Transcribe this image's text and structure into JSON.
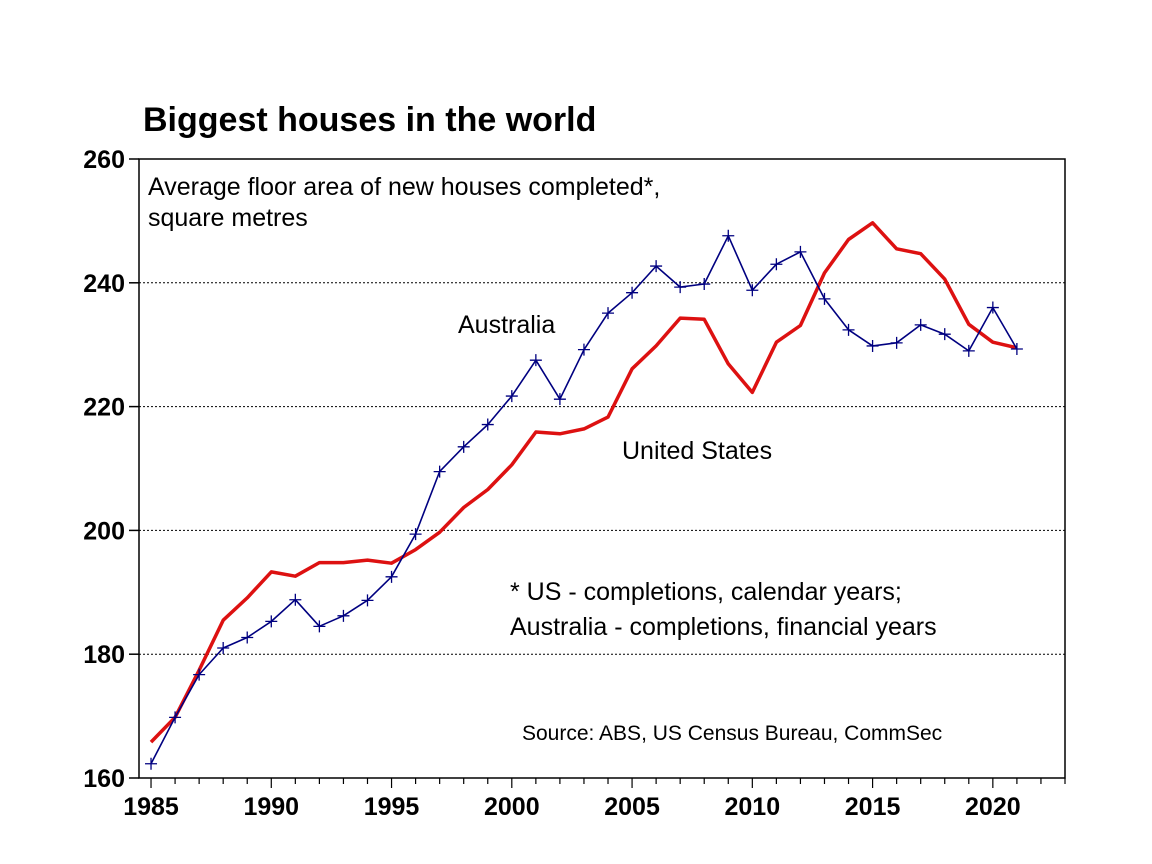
{
  "chart_data": {
    "type": "line",
    "title": "Biggest houses in the world",
    "subtitle_lines": [
      "Average floor area of new houses completed*,",
      "square metres"
    ],
    "footnote_lines": [
      "* US - completions, calendar years;",
      "Australia - completions, financial years"
    ],
    "source": "Source: ABS, US Census Bureau, CommSec",
    "xlim": [
      1984.5,
      2023
    ],
    "ylim": [
      160,
      260
    ],
    "x_ticks": [
      1985,
      1990,
      1995,
      2000,
      2005,
      2010,
      2015,
      2020
    ],
    "y_ticks": [
      160,
      180,
      200,
      220,
      240,
      260
    ],
    "grid_y": true,
    "series": [
      {
        "name": "Australia",
        "color": "#000080",
        "marker": "plus",
        "x": [
          1985,
          1986,
          1987,
          1988,
          1989,
          1990,
          1991,
          1992,
          1993,
          1994,
          1995,
          1996,
          1997,
          1998,
          1999,
          2000,
          2001,
          2002,
          2003,
          2004,
          2005,
          2006,
          2007,
          2008,
          2009,
          2010,
          2011,
          2012,
          2013,
          2014,
          2015,
          2016,
          2017,
          2018,
          2019,
          2020,
          2021
        ],
        "values": [
          162.3,
          169.8,
          176.7,
          181.0,
          182.7,
          185.3,
          188.8,
          184.5,
          186.2,
          188.7,
          192.5,
          199.4,
          209.5,
          213.5,
          217.1,
          221.7,
          227.5,
          221.2,
          229.2,
          235.1,
          238.4,
          242.7,
          239.3,
          239.8,
          247.6,
          238.8,
          243.0,
          245.0,
          237.4,
          232.4,
          229.8,
          230.3,
          233.2,
          231.7,
          229.0,
          236.0,
          229.3
        ]
      },
      {
        "name": "United States",
        "color": "#dd1111",
        "marker": "none",
        "x": [
          1985,
          1986,
          1987,
          1988,
          1989,
          1990,
          1991,
          1992,
          1993,
          1994,
          1995,
          1996,
          1997,
          1998,
          1999,
          2000,
          2001,
          2002,
          2003,
          2004,
          2005,
          2006,
          2007,
          2008,
          2009,
          2010,
          2011,
          2012,
          2013,
          2014,
          2015,
          2016,
          2017,
          2018,
          2019,
          2020,
          2021
        ],
        "values": [
          165.8,
          169.8,
          177.4,
          185.5,
          189.1,
          193.3,
          192.6,
          194.8,
          194.8,
          195.2,
          194.7,
          196.9,
          199.7,
          203.7,
          206.6,
          210.6,
          215.9,
          215.6,
          216.4,
          218.3,
          226.1,
          229.8,
          234.3,
          234.1,
          226.9,
          222.3,
          230.4,
          233.1,
          241.6,
          247.0,
          249.7,
          245.5,
          244.7,
          240.6,
          233.3,
          230.4,
          229.5
        ]
      }
    ]
  }
}
